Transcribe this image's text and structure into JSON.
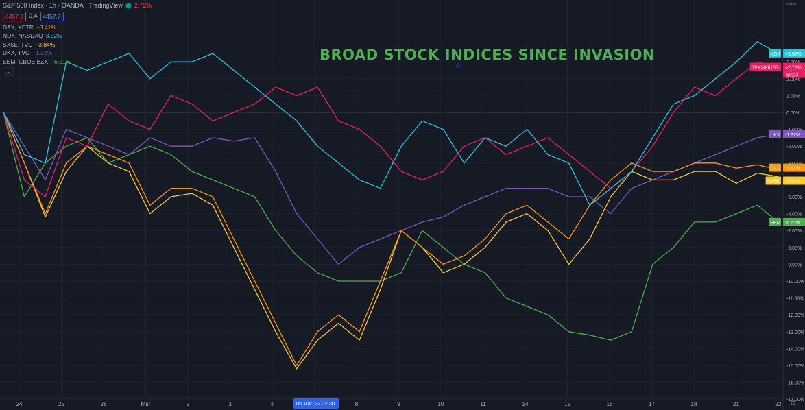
{
  "header": {
    "symbol": "S&P 500 Index · 1h · OANDA · TradingView",
    "change": "2.72%",
    "bid": "4457.3",
    "spread": "0.4",
    "ask": "4457.7"
  },
  "legend": [
    {
      "name": "DAX, XETR",
      "value": "−3.41%",
      "color": "#ff9800"
    },
    {
      "name": "NDX, NASDAQ",
      "value": "3.52%",
      "color": "#26c6da"
    },
    {
      "name": "SX5E, TVC",
      "value": "−3.84%",
      "color": "#ffca28"
    },
    {
      "name": "UKX, TVC",
      "value": "−1.32%",
      "color": "#7e57c2"
    },
    {
      "name": "EEM, CBOE BZX",
      "value": "−6.51%",
      "color": "#4caf50"
    }
  ],
  "scale_mode": "Mixed",
  "crosshair_time": "05 Mar '22  02:30",
  "colors": {
    "background": "#161a25",
    "grid": "#1f2330",
    "zero_line": "#3a3e4a",
    "title": "#4caf50"
  },
  "icons": {
    "collapse": "chevron-up-icon",
    "settings": "gear-icon",
    "status": "market-status-dot-icon"
  },
  "chart_data": {
    "type": "line",
    "title": "BROAD STOCK INDICES SINCE INVASION",
    "ylim": [
      -17,
      5
    ],
    "yticks": [
      "1.00%",
      "0.00%",
      "-1.00%",
      "-2.00%",
      "-3.00%",
      "-4.00%",
      "-5.00%",
      "-6.00%",
      "-7.00%",
      "-8.00%",
      "-9.00%",
      "-10.00%",
      "-11.00%",
      "-12.00%",
      "-13.00%",
      "-14.00%",
      "-15.00%",
      "-16.00%",
      "-17.00%"
    ],
    "yticks_top": [
      "3.00%",
      "2.00%"
    ],
    "xticks": [
      "24",
      "25",
      "28",
      "Mar",
      "2",
      "3",
      "4",
      "",
      "8",
      "9",
      "10",
      "11",
      "14",
      "15",
      "16",
      "17",
      "18",
      "21",
      "22"
    ],
    "x": [
      0,
      0.5,
      1,
      1.5,
      2,
      2.5,
      3,
      3.5,
      4,
      4.5,
      5,
      5.5,
      6,
      6.5,
      7,
      7.5,
      8,
      8.5,
      9,
      9.5,
      10,
      10.5,
      11,
      11.5,
      12,
      12.5,
      13,
      13.5,
      14,
      14.5,
      15,
      15.5,
      16,
      16.5,
      17,
      17.5,
      18,
      18.5
    ],
    "series": [
      {
        "name": "SPX500USD",
        "label": "+2.72%",
        "label2": "59:33",
        "color": "#e91e63",
        "values": [
          0,
          -4,
          -5,
          -1.5,
          -2,
          0.5,
          -0.5,
          -1,
          1,
          0.5,
          -0.5,
          0,
          0.5,
          1.5,
          1,
          1.5,
          -0.5,
          -1,
          -2,
          -3.5,
          -4,
          -3.5,
          -2,
          -1.5,
          -2.5,
          -2,
          -1.5,
          -2.5,
          -3.5,
          -4.5,
          -3.5,
          -2,
          0,
          1.5,
          1,
          2,
          3,
          2.7
        ]
      },
      {
        "name": "NDX",
        "label": "+3.52%",
        "color": "#26c6da",
        "values": [
          0,
          -2.5,
          -3,
          3,
          2.5,
          3,
          3.5,
          2,
          3,
          3,
          3.5,
          2.5,
          1.5,
          0.5,
          -0.5,
          -2,
          -3,
          -4,
          -4.5,
          -2,
          -0.5,
          -1,
          -3,
          -1.5,
          -2,
          -1,
          -2.5,
          -3,
          -5.5,
          -4.5,
          -3.5,
          -1.5,
          0.5,
          1,
          2,
          3,
          4.2,
          3.5
        ]
      },
      {
        "name": "UKX",
        "label": "-1.32%",
        "color": "#7e57c2",
        "values": [
          0,
          -2,
          -4,
          -1,
          -1.5,
          -2,
          -2.5,
          -1.5,
          -2,
          -2,
          -1.5,
          -1.7,
          -1.5,
          -3.5,
          -6,
          -7.5,
          -9,
          -8,
          -7.5,
          -7,
          -6.5,
          -6.2,
          -5.5,
          -5,
          -4.5,
          -4.5,
          -4.5,
          -5,
          -5,
          -6,
          -4.5,
          -4,
          -3.5,
          -3,
          -2.5,
          -2,
          -1.5,
          -1.3
        ]
      },
      {
        "name": "DAX",
        "label": "-3.41%",
        "color": "#ff9800",
        "values": [
          0,
          -3,
          -6,
          -3,
          -2,
          -2.5,
          -3,
          -5.5,
          -4.5,
          -4.5,
          -5,
          -7.5,
          -10,
          -12.5,
          -15,
          -13,
          -12,
          -13,
          -10,
          -7,
          -8,
          -9,
          -8.5,
          -7.5,
          -6,
          -5.5,
          -6.5,
          -7.5,
          -5.5,
          -4,
          -3,
          -3.5,
          -3.5,
          -3,
          -3,
          -3.3,
          -3.1,
          -3.4
        ]
      },
      {
        "name": "SX5E",
        "label": "-3.84%",
        "color": "#ffca28",
        "values": [
          0,
          -3,
          -6.2,
          -3.5,
          -2,
          -3,
          -3.5,
          -6,
          -5,
          -4.8,
          -5.5,
          -8,
          -10.5,
          -13,
          -15.2,
          -13.5,
          -12.5,
          -13.5,
          -10.5,
          -7,
          -8,
          -9.5,
          -9,
          -8,
          -6.5,
          -6,
          -7,
          -9,
          -7.5,
          -5,
          -3.5,
          -4,
          -4,
          -3.5,
          -3.5,
          -4.2,
          -3.6,
          -3.8
        ]
      },
      {
        "name": "EEM",
        "label": "-6.51%",
        "color": "#4caf50",
        "values": [
          0,
          -5,
          -3,
          -2,
          -1.5,
          -3,
          -2.5,
          -2,
          -2.5,
          -3.5,
          -4,
          -4.5,
          -5,
          -7,
          -8.5,
          -9.5,
          -10,
          -10,
          -10,
          -9.5,
          -7,
          -8,
          -9,
          -9.5,
          -11,
          -11.5,
          -12,
          -13,
          -13.2,
          -13.5,
          -13,
          -9,
          -8,
          -6.5,
          -6.5,
          -6,
          -5.5,
          -6.5
        ]
      }
    ]
  }
}
